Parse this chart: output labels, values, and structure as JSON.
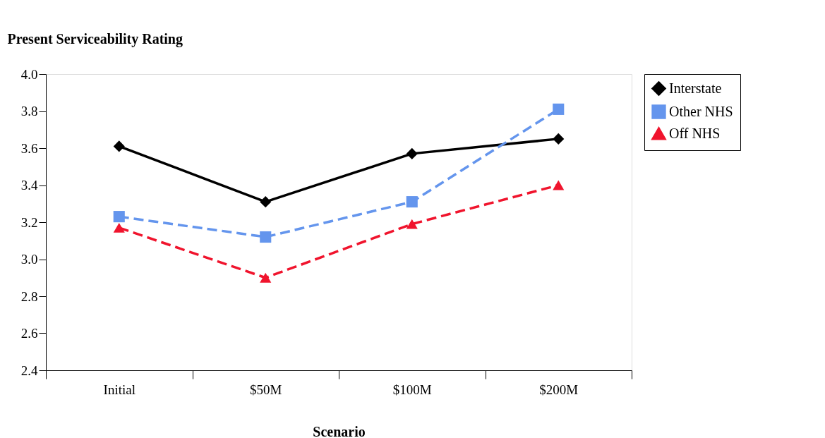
{
  "chart_data": {
    "type": "line",
    "xlabel": "Scenario",
    "ylabel": "Present Serviceability Rating",
    "categories": [
      "Initial",
      "$50M",
      "$100M",
      "$200M"
    ],
    "series": [
      {
        "name": "Interstate",
        "color": "#000000",
        "marker": "diamond",
        "line_style": "solid",
        "values": [
          3.61,
          3.31,
          3.57,
          3.65
        ]
      },
      {
        "name": "Other NHS",
        "color": "#6495ed",
        "marker": "square",
        "line_style": "dashed",
        "values": [
          3.23,
          3.12,
          3.31,
          3.81
        ]
      },
      {
        "name": "Off NHS",
        "color": "#f0142d",
        "marker": "triangle",
        "line_style": "dashed",
        "values": [
          3.17,
          2.9,
          3.19,
          3.4
        ]
      }
    ],
    "ylim": [
      2.4,
      4.0
    ],
    "yticks": [
      2.4,
      2.6,
      2.8,
      {
        "value": 3,
        "label": "3.0"
      },
      3.2,
      3.4,
      3.6,
      3.8,
      {
        "value": 4,
        "label": "4.0"
      }
    ],
    "grid": false,
    "legend": "right"
  }
}
